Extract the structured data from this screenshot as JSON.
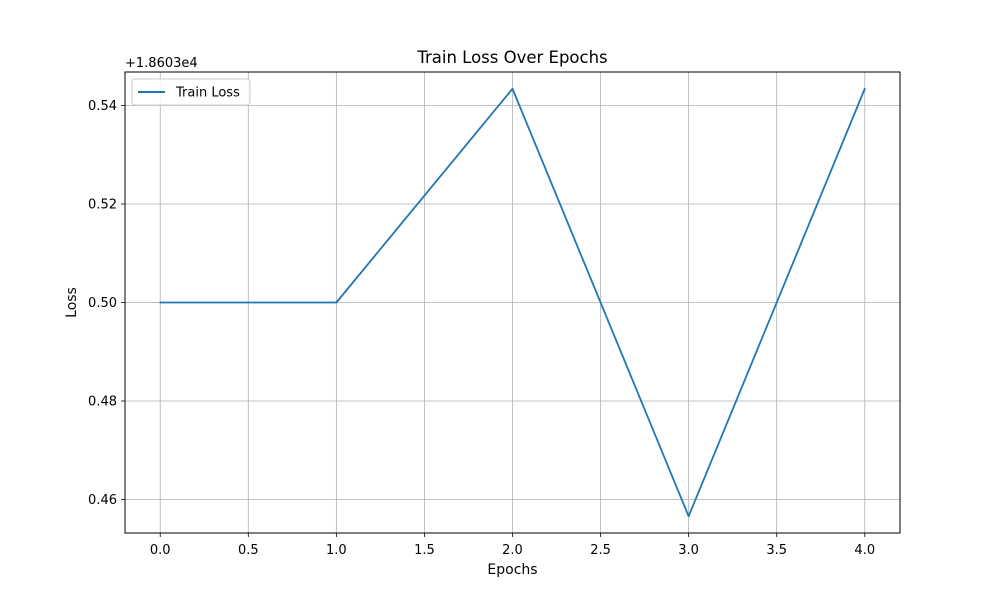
{
  "chart_data": {
    "type": "line",
    "title": "Train Loss Over Epochs",
    "xlabel": "Epochs",
    "ylabel": "Loss",
    "offset_label": "+1.8603e4",
    "x": [
      0,
      1,
      2,
      3,
      4
    ],
    "series": [
      {
        "name": "Train Loss",
        "color": "#1f77b4",
        "values": [
          0.5,
          0.5,
          0.5434,
          0.4566,
          0.5434
        ]
      }
    ],
    "xlim": [
      -0.2,
      4.2
    ],
    "ylim": [
      0.4532,
      0.5468
    ],
    "xticks": [
      0.0,
      0.5,
      1.0,
      1.5,
      2.0,
      2.5,
      3.0,
      3.5,
      4.0
    ],
    "xtick_labels": [
      "0.0",
      "0.5",
      "1.0",
      "1.5",
      "2.0",
      "2.5",
      "3.0",
      "3.5",
      "4.0"
    ],
    "yticks": [
      0.46,
      0.48,
      0.5,
      0.52,
      0.54
    ],
    "ytick_labels": [
      "0.46",
      "0.48",
      "0.50",
      "0.52",
      "0.54"
    ],
    "grid": true,
    "legend_position": "top-left"
  }
}
